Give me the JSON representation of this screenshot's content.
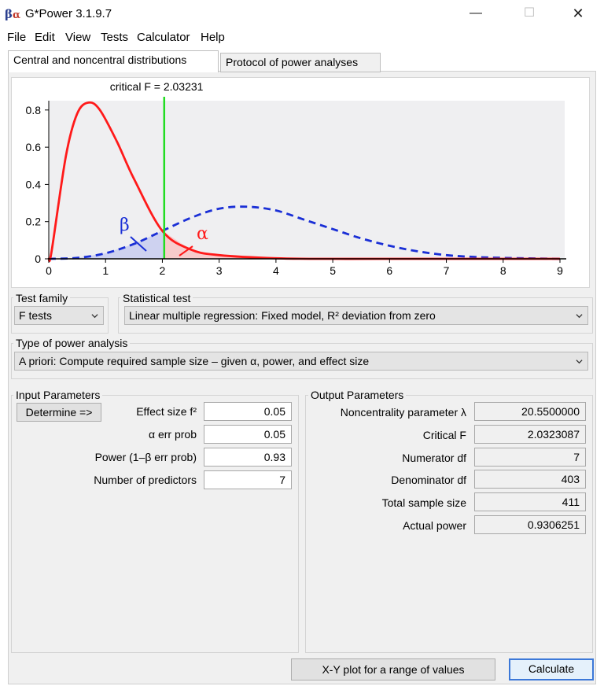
{
  "window": {
    "title": "G*Power 3.1.9.7",
    "icon_text_beta": "β",
    "icon_text_alpha": "α",
    "minimize_glyph": "—",
    "maximize_glyph": "☐",
    "close_glyph": "✕"
  },
  "menu": [
    "File",
    "Edit",
    "View",
    "Tests",
    "Calculator",
    "Help"
  ],
  "tabs": [
    {
      "label": "Central and noncentral distributions",
      "active": true
    },
    {
      "label": "Protocol of power analyses",
      "active": false
    }
  ],
  "colors": {
    "central_curve": "#ff1a1a",
    "noncentral_curve": "#1a2fd6",
    "critical_line": "#22dd22",
    "beta_fill": "#c8cdf0",
    "alpha_fill": "#f7c6c6",
    "plot_bg": "#efeff1"
  },
  "chart_data": {
    "type": "line",
    "annotation_critical": "critical F = 2.03231",
    "critical_value": 2.03231,
    "beta_label": "β",
    "alpha_label": "α",
    "xlim": [
      0,
      9
    ],
    "ylim": [
      0,
      0.85
    ],
    "x_ticks": [
      "0",
      "1",
      "2",
      "3",
      "4",
      "5",
      "6",
      "7",
      "8",
      "9"
    ],
    "y_ticks": [
      "0",
      "0.2",
      "0.4",
      "0.6",
      "0.8"
    ],
    "series": [
      {
        "style": "solid",
        "x": [
          0.05,
          0.3,
          0.5,
          0.7,
          0.9,
          1.2,
          1.5,
          2.0,
          2.5,
          3.0,
          4.0,
          5.0,
          6.0,
          9.0
        ],
        "y": [
          0.04,
          0.55,
          0.78,
          0.84,
          0.8,
          0.63,
          0.43,
          0.15,
          0.05,
          0.02,
          0.003,
          0.0,
          0.0,
          0.0
        ]
      },
      {
        "style": "dashed",
        "x": [
          0.0,
          0.5,
          1.0,
          1.5,
          2.0,
          2.5,
          3.0,
          3.5,
          4.0,
          4.5,
          5.0,
          5.5,
          6.0,
          6.5,
          7.0,
          7.5,
          8.0,
          9.0
        ],
        "y": [
          0.0,
          0.005,
          0.03,
          0.08,
          0.15,
          0.22,
          0.27,
          0.28,
          0.26,
          0.21,
          0.16,
          0.11,
          0.07,
          0.04,
          0.02,
          0.01,
          0.005,
          0.0
        ]
      }
    ]
  },
  "test_family": {
    "label": "Test family",
    "value": "F tests"
  },
  "statistical_test": {
    "label": "Statistical test",
    "value": "Linear multiple regression: Fixed model, R² deviation from zero"
  },
  "power_analysis": {
    "label": "Type of power analysis",
    "value": "A priori: Compute required sample size – given α, power, and effect size"
  },
  "input": {
    "title": "Input Parameters",
    "determine_label": "Determine =>",
    "fields": [
      {
        "label": "Effect size f²",
        "value": "0.05"
      },
      {
        "label": "α err prob",
        "value": "0.05"
      },
      {
        "label": "Power (1–β err prob)",
        "value": "0.93"
      },
      {
        "label": "Number of predictors",
        "value": "7"
      }
    ]
  },
  "output": {
    "title": "Output Parameters",
    "fields": [
      {
        "label": "Noncentrality parameter λ",
        "value": "20.5500000"
      },
      {
        "label": "Critical F",
        "value": "2.0323087"
      },
      {
        "label": "Numerator df",
        "value": "7"
      },
      {
        "label": "Denominator df",
        "value": "403"
      },
      {
        "label": "Total sample size",
        "value": "411"
      },
      {
        "label": "Actual power",
        "value": "0.9306251"
      }
    ]
  },
  "buttons": {
    "xy_plot": "X-Y plot for a range of values",
    "calculate": "Calculate"
  }
}
